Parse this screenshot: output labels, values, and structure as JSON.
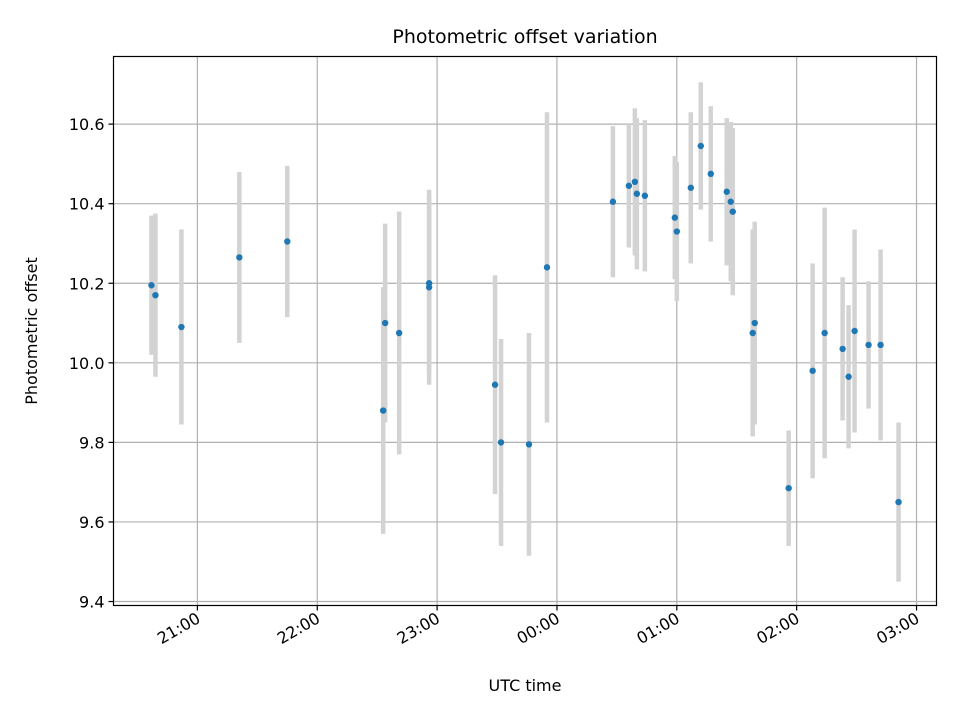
{
  "chart_data": {
    "type": "scatter",
    "title": "Photometric offset variation",
    "xlabel": "UTC time",
    "ylabel": "Photometric offset",
    "x_ticks": [
      "21:00",
      "22:00",
      "23:00",
      "00:00",
      "01:00",
      "02:00",
      "03:00"
    ],
    "y_ticks": [
      "9.4",
      "9.6",
      "9.8",
      "10.0",
      "10.2",
      "10.4",
      "10.6"
    ],
    "ylim": [
      9.39,
      10.77
    ],
    "xlim": [
      "20:18",
      "03:10"
    ],
    "grid": true,
    "colors": {
      "point": "#1f77b4",
      "errorbar": "#d3d3d3",
      "grid": "#b0b0b0"
    },
    "points": [
      {
        "x": "20:37",
        "y": 10.195,
        "err": 0.175
      },
      {
        "x": "20:39",
        "y": 10.17,
        "err": 0.205
      },
      {
        "x": "20:52",
        "y": 10.09,
        "err": 0.245
      },
      {
        "x": "21:21",
        "y": 10.265,
        "err": 0.215
      },
      {
        "x": "21:45",
        "y": 10.305,
        "err": 0.19
      },
      {
        "x": "22:33",
        "y": 9.88,
        "err": 0.31
      },
      {
        "x": "22:34",
        "y": 10.1,
        "err": 0.25
      },
      {
        "x": "22:41",
        "y": 10.075,
        "err": 0.305
      },
      {
        "x": "22:56",
        "y": 10.19,
        "err": 0.245
      },
      {
        "x": "22:56",
        "y": 10.2,
        "err": 0.22
      },
      {
        "x": "23:29",
        "y": 9.945,
        "err": 0.275
      },
      {
        "x": "23:32",
        "y": 9.8,
        "err": 0.26
      },
      {
        "x": "23:46",
        "y": 9.795,
        "err": 0.28
      },
      {
        "x": "23:55",
        "y": 10.24,
        "err": 0.39
      },
      {
        "x": "00:28",
        "y": 10.405,
        "err": 0.19
      },
      {
        "x": "00:36",
        "y": 10.445,
        "err": 0.155
      },
      {
        "x": "00:39",
        "y": 10.455,
        "err": 0.185
      },
      {
        "x": "00:40",
        "y": 10.425,
        "err": 0.19
      },
      {
        "x": "00:44",
        "y": 10.42,
        "err": 0.19
      },
      {
        "x": "00:59",
        "y": 10.365,
        "err": 0.155
      },
      {
        "x": "01:00",
        "y": 10.33,
        "err": 0.175
      },
      {
        "x": "01:07",
        "y": 10.44,
        "err": 0.19
      },
      {
        "x": "01:12",
        "y": 10.545,
        "err": 0.16
      },
      {
        "x": "01:17",
        "y": 10.475,
        "err": 0.17
      },
      {
        "x": "01:25",
        "y": 10.43,
        "err": 0.185
      },
      {
        "x": "01:27",
        "y": 10.405,
        "err": 0.2
      },
      {
        "x": "01:28",
        "y": 10.38,
        "err": 0.21
      },
      {
        "x": "01:38",
        "y": 10.075,
        "err": 0.26
      },
      {
        "x": "01:39",
        "y": 10.1,
        "err": 0.255
      },
      {
        "x": "01:56",
        "y": 9.685,
        "err": 0.145
      },
      {
        "x": "02:08",
        "y": 9.98,
        "err": 0.27
      },
      {
        "x": "02:14",
        "y": 10.075,
        "err": 0.315
      },
      {
        "x": "02:23",
        "y": 10.035,
        "err": 0.18
      },
      {
        "x": "02:26",
        "y": 9.965,
        "err": 0.18
      },
      {
        "x": "02:29",
        "y": 10.08,
        "err": 0.255
      },
      {
        "x": "02:36",
        "y": 10.045,
        "err": 0.16
      },
      {
        "x": "02:42",
        "y": 10.045,
        "err": 0.24
      },
      {
        "x": "02:51",
        "y": 9.65,
        "err": 0.2
      }
    ]
  }
}
